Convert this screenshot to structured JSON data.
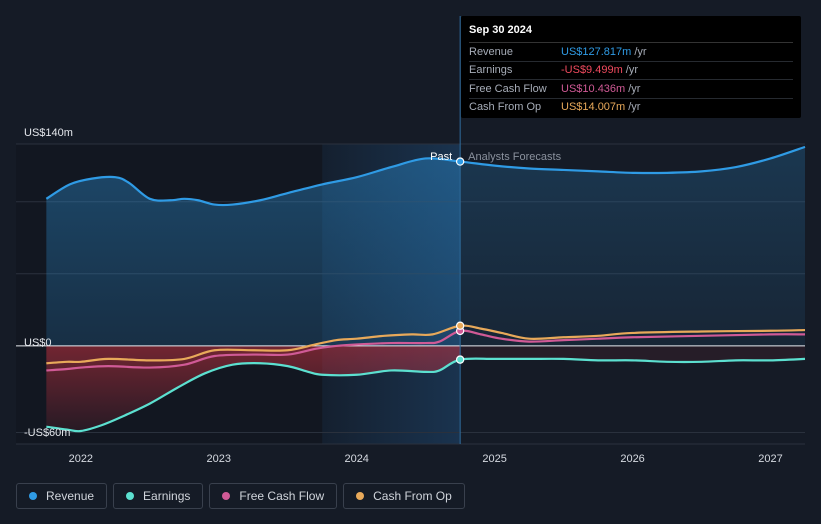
{
  "tooltip": {
    "date": "Sep 30 2024",
    "rows": [
      {
        "label": "Revenue",
        "value": "US$127.817m",
        "unit": "/yr",
        "color": "#2f9be5"
      },
      {
        "label": "Earnings",
        "value": "-US$9.499m",
        "unit": "/yr",
        "color": "#f04a5e"
      },
      {
        "label": "Free Cash Flow",
        "value": "US$10.436m",
        "unit": "/yr",
        "color": "#d05a96"
      },
      {
        "label": "Cash From Op",
        "value": "US$14.007m",
        "unit": "/yr",
        "color": "#e8a95a"
      }
    ]
  },
  "legend": [
    {
      "label": "Revenue",
      "color": "#2f9be5"
    },
    {
      "label": "Earnings",
      "color": "#5ce0d0"
    },
    {
      "label": "Free Cash Flow",
      "color": "#d05a96"
    },
    {
      "label": "Cash From Op",
      "color": "#e8a95a"
    }
  ],
  "chart_data": {
    "type": "line",
    "y_labels": [
      "US$140m",
      "US$0",
      "-US$60m"
    ],
    "past_label": "Past",
    "forecast_label": "Analysts Forecasts",
    "x_ticks": [
      {
        "label": "2022",
        "x": 2022.0
      },
      {
        "label": "2023",
        "x": 2023.0
      },
      {
        "label": "2024",
        "x": 2024.0
      },
      {
        "label": "2025",
        "x": 2025.0
      },
      {
        "label": "2026",
        "x": 2026.0
      },
      {
        "label": "2027",
        "x": 2027.0
      }
    ],
    "xlim": [
      2021.53,
      2027.25
    ],
    "ylim": [
      -68,
      140
    ],
    "past_end": 2024.75,
    "highlight_start": 2023.75,
    "series": [
      {
        "name": "Revenue",
        "color": "#2f9be5",
        "points": [
          [
            2021.75,
            102
          ],
          [
            2021.92,
            112
          ],
          [
            2022.08,
            116
          ],
          [
            2022.25,
            117
          ],
          [
            2022.35,
            113
          ],
          [
            2022.5,
            102
          ],
          [
            2022.65,
            101
          ],
          [
            2022.75,
            102
          ],
          [
            2022.85,
            101
          ],
          [
            2022.97,
            98
          ],
          [
            2023.1,
            98
          ],
          [
            2023.3,
            101
          ],
          [
            2023.5,
            106
          ],
          [
            2023.75,
            112
          ],
          [
            2024.0,
            117
          ],
          [
            2024.25,
            124
          ],
          [
            2024.5,
            130
          ],
          [
            2024.75,
            127.817
          ],
          [
            2025.0,
            125
          ],
          [
            2025.25,
            123
          ],
          [
            2025.5,
            122
          ],
          [
            2025.75,
            121
          ],
          [
            2026.0,
            120
          ],
          [
            2026.25,
            120
          ],
          [
            2026.5,
            121
          ],
          [
            2026.75,
            124
          ],
          [
            2027.0,
            130
          ],
          [
            2027.25,
            138
          ]
        ]
      },
      {
        "name": "Earnings",
        "color": "#5ce0d0",
        "points": [
          [
            2021.75,
            -56
          ],
          [
            2021.9,
            -58
          ],
          [
            2022.0,
            -59
          ],
          [
            2022.15,
            -55
          ],
          [
            2022.3,
            -49
          ],
          [
            2022.5,
            -40
          ],
          [
            2022.7,
            -29
          ],
          [
            2022.9,
            -19
          ],
          [
            2023.1,
            -13
          ],
          [
            2023.3,
            -12
          ],
          [
            2023.5,
            -14
          ],
          [
            2023.65,
            -18
          ],
          [
            2023.75,
            -20
          ],
          [
            2024.0,
            -20
          ],
          [
            2024.25,
            -17
          ],
          [
            2024.5,
            -18
          ],
          [
            2024.6,
            -17
          ],
          [
            2024.75,
            -9.499
          ],
          [
            2025.0,
            -9
          ],
          [
            2025.25,
            -9
          ],
          [
            2025.5,
            -9
          ],
          [
            2025.75,
            -10
          ],
          [
            2026.0,
            -10
          ],
          [
            2026.25,
            -11
          ],
          [
            2026.5,
            -11
          ],
          [
            2026.75,
            -10
          ],
          [
            2027.0,
            -10
          ],
          [
            2027.25,
            -9
          ]
        ]
      },
      {
        "name": "Free Cash Flow",
        "color": "#d05a96",
        "points": [
          [
            2021.75,
            -17
          ],
          [
            2021.9,
            -16
          ],
          [
            2022.0,
            -15
          ],
          [
            2022.2,
            -14
          ],
          [
            2022.5,
            -15
          ],
          [
            2022.75,
            -13
          ],
          [
            2022.97,
            -7
          ],
          [
            2023.25,
            -6
          ],
          [
            2023.5,
            -6
          ],
          [
            2023.7,
            -2
          ],
          [
            2023.85,
            0
          ],
          [
            2024.0,
            1
          ],
          [
            2024.25,
            2
          ],
          [
            2024.5,
            2
          ],
          [
            2024.6,
            3
          ],
          [
            2024.75,
            10.436
          ],
          [
            2024.9,
            8
          ],
          [
            2025.05,
            5
          ],
          [
            2025.25,
            3
          ],
          [
            2025.5,
            4
          ],
          [
            2025.75,
            5
          ],
          [
            2026.0,
            6
          ],
          [
            2026.5,
            7
          ],
          [
            2027.0,
            8
          ],
          [
            2027.25,
            8
          ]
        ]
      },
      {
        "name": "Cash From Op",
        "color": "#e8a95a",
        "points": [
          [
            2021.75,
            -12
          ],
          [
            2021.9,
            -11
          ],
          [
            2022.0,
            -11
          ],
          [
            2022.2,
            -9
          ],
          [
            2022.5,
            -10
          ],
          [
            2022.75,
            -9
          ],
          [
            2022.97,
            -3
          ],
          [
            2023.25,
            -3
          ],
          [
            2023.5,
            -3
          ],
          [
            2023.7,
            1
          ],
          [
            2023.85,
            4
          ],
          [
            2024.0,
            5
          ],
          [
            2024.2,
            7
          ],
          [
            2024.4,
            8
          ],
          [
            2024.55,
            8
          ],
          [
            2024.75,
            14.007
          ],
          [
            2024.9,
            12
          ],
          [
            2025.05,
            9
          ],
          [
            2025.25,
            5
          ],
          [
            2025.5,
            6
          ],
          [
            2025.75,
            7
          ],
          [
            2026.0,
            9
          ],
          [
            2026.5,
            10
          ],
          [
            2027.0,
            10.5
          ],
          [
            2027.25,
            11
          ]
        ]
      }
    ]
  }
}
